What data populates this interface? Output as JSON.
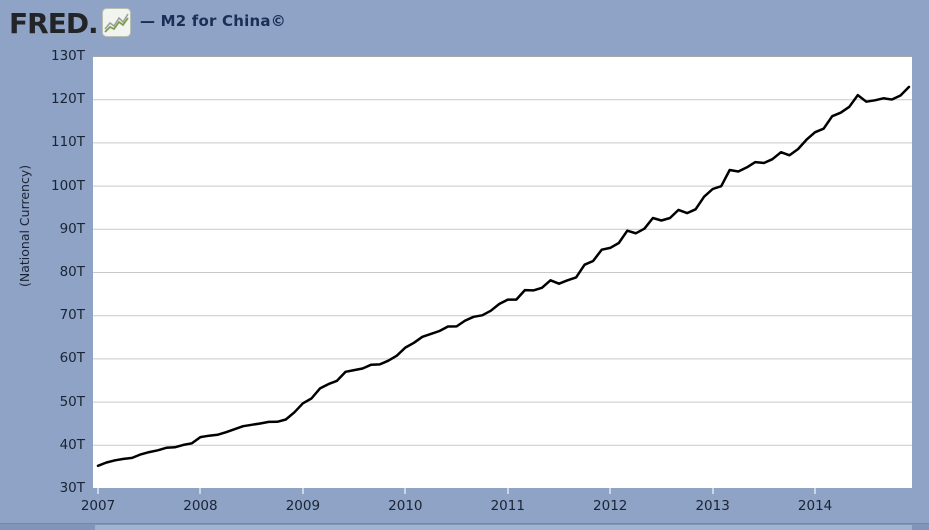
{
  "header": {
    "logo_text": "FRED.",
    "series_title": "— M2 for China©"
  },
  "icons": {
    "header_logo_chart": "sparkline-chart-icon"
  },
  "colors": {
    "background": "#8EA3C6",
    "plot_background": "#FFFFFF",
    "gridline": "#C9C9C9",
    "plot_top_border": "#A8A8A8",
    "line": "#000000",
    "axis_label": "#1A2433",
    "title": "#1C2E55",
    "tick_mark": "#CBD5E5"
  },
  "chart_data": {
    "type": "line",
    "title": "M2 for China©",
    "ylabel": "(National Currency)",
    "xlabel": "",
    "legend_position": "none",
    "grid": true,
    "ylim": [
      30,
      130
    ],
    "y_tick_values": [
      30,
      40,
      50,
      60,
      70,
      80,
      90,
      100,
      110,
      120,
      130
    ],
    "y_tick_labels": [
      "30T",
      "40T",
      "50T",
      "60T",
      "70T",
      "80T",
      "90T",
      "100T",
      "110T",
      "120T",
      "130T"
    ],
    "x_tick_labels": [
      "2007",
      "2008",
      "2009",
      "2010",
      "2011",
      "2012",
      "2013",
      "2014"
    ],
    "x_start": "2007-01",
    "x_end": "2014-12",
    "frequency": "monthly",
    "unit_suffix": "T",
    "series": [
      {
        "name": "M2 for China©",
        "values": [
          35.15,
          35.91,
          36.41,
          36.73,
          36.97,
          37.78,
          38.31,
          38.72,
          39.31,
          39.42,
          39.98,
          40.34,
          41.78,
          42.1,
          42.31,
          42.92,
          43.62,
          44.31,
          44.64,
          44.92,
          45.29,
          45.32,
          45.86,
          47.52,
          49.61,
          50.71,
          53.06,
          54.05,
          54.82,
          56.89,
          57.3,
          57.67,
          58.54,
          58.62,
          59.46,
          60.62,
          62.51,
          63.6,
          65.0,
          65.66,
          66.34,
          67.39,
          67.41,
          68.75,
          69.64,
          69.98,
          71.03,
          72.59,
          73.61,
          73.61,
          75.81,
          75.73,
          76.34,
          78.08,
          77.29,
          78.07,
          78.74,
          81.68,
          82.55,
          85.16,
          85.58,
          86.72,
          89.56,
          88.96,
          90.02,
          92.5,
          91.91,
          92.49,
          94.37,
          93.64,
          94.52,
          97.42,
          99.21,
          99.86,
          103.61,
          103.26,
          104.21,
          105.45,
          105.23,
          106.12,
          107.74,
          107.02,
          108.46,
          110.65,
          112.35,
          113.18,
          116.07,
          116.88,
          118.23,
          120.96,
          119.42,
          119.75,
          120.21,
          119.92,
          120.85,
          122.84
        ]
      }
    ]
  }
}
